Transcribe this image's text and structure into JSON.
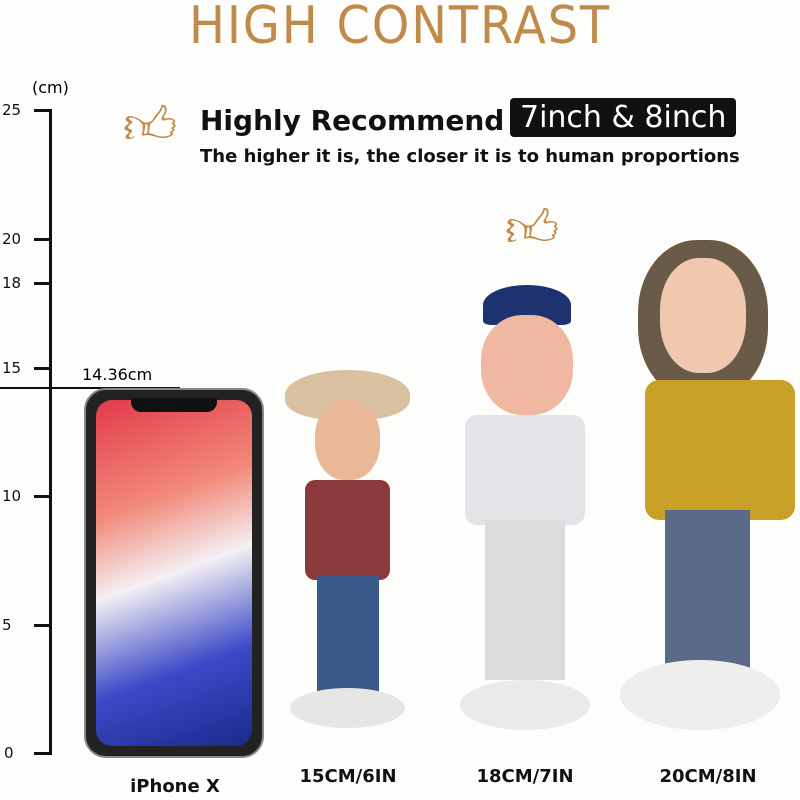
{
  "title": "HIGH CONTRAST",
  "banner": {
    "headline": "Highly Recommend",
    "badge": "7inch & 8inch",
    "subtitle": "The higher it is, the closer it is to human proportions",
    "icon": "thumbs-up-icon"
  },
  "ruler": {
    "unit": "(cm)",
    "ticks": [
      "25",
      "20",
      "18",
      "15",
      "10",
      "5",
      "0"
    ],
    "marker": "14.36cm"
  },
  "items": [
    {
      "label": "iPhone X"
    },
    {
      "label": "15CM/6IN"
    },
    {
      "label": "18CM/7IN"
    },
    {
      "label": "20CM/8IN"
    }
  ],
  "colors": {
    "accent": "#c08a4a",
    "badge_bg": "#111111"
  }
}
